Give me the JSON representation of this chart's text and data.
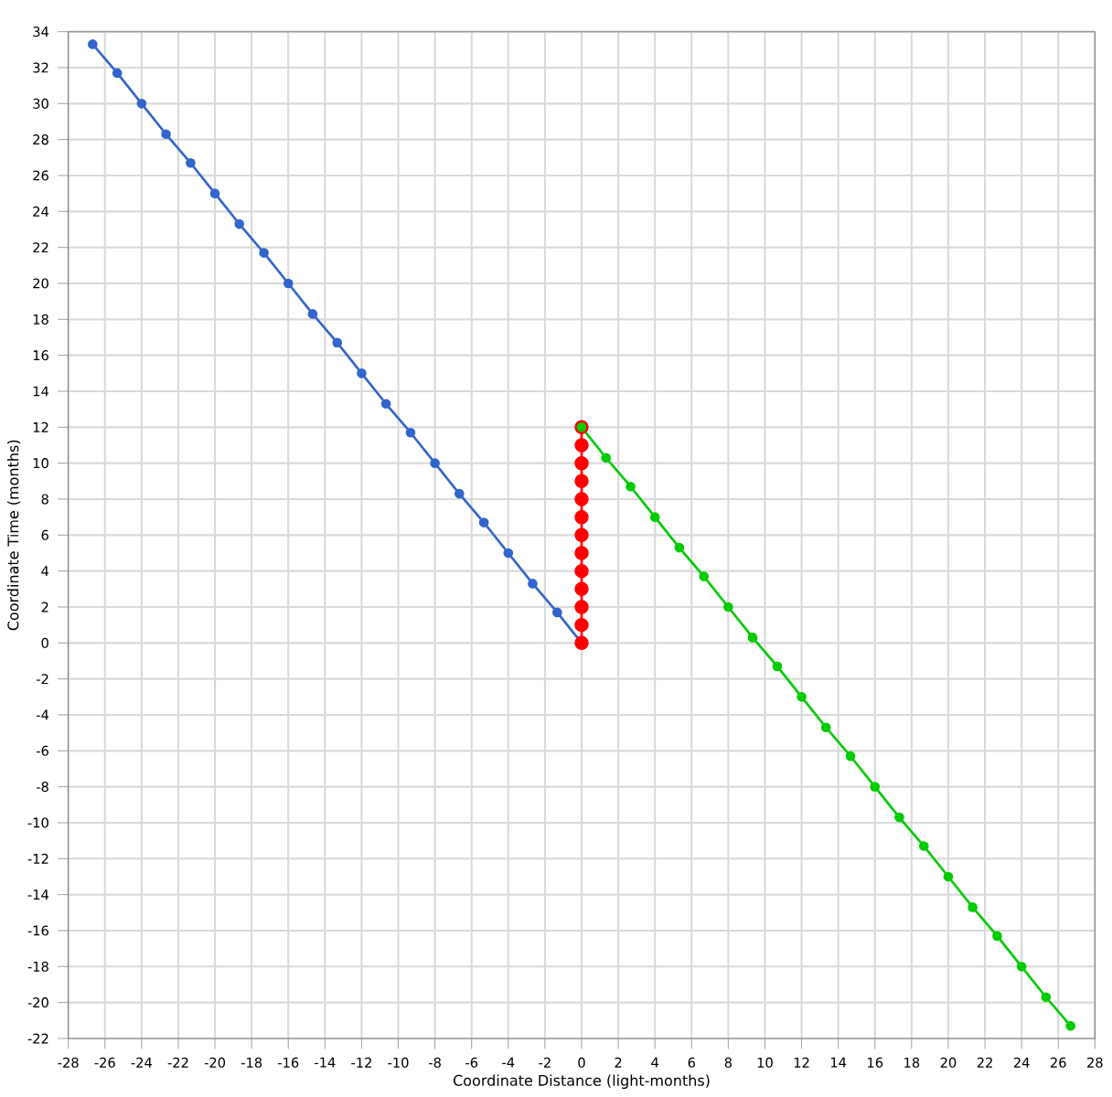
{
  "chart_data": {
    "type": "line",
    "xlabel": "Coordinate Distance (light-months)",
    "ylabel": "Coordinate Time (months)",
    "xlim": [
      -28,
      28
    ],
    "ylim": [
      -22,
      34
    ],
    "xticks": [
      -28,
      -26,
      -24,
      -22,
      -20,
      -18,
      -16,
      -14,
      -12,
      -10,
      -8,
      -6,
      -4,
      -2,
      0,
      2,
      4,
      6,
      8,
      10,
      12,
      14,
      16,
      18,
      20,
      22,
      24,
      26,
      28
    ],
    "yticks": [
      -22,
      -20,
      -18,
      -16,
      -14,
      -12,
      -10,
      -8,
      -6,
      -4,
      -2,
      0,
      2,
      4,
      6,
      8,
      10,
      12,
      14,
      16,
      18,
      20,
      22,
      24,
      26,
      28,
      30,
      32,
      34
    ],
    "grid": true,
    "marker": "circle",
    "line_style": "solid",
    "series": [
      {
        "color": "#3366cc",
        "x": [
          0,
          -1.33,
          -2.67,
          -4,
          -5.33,
          -6.67,
          -8,
          -9.33,
          -10.67,
          -12,
          -13.33,
          -14.67,
          -16,
          -17.33,
          -18.67,
          -20,
          -21.33,
          -22.67,
          -24,
          -25.33,
          -26.67
        ],
        "values": [
          0,
          1.7,
          3.3,
          5,
          6.7,
          8.3,
          10,
          11.7,
          13.3,
          15,
          16.7,
          18.3,
          20,
          21.7,
          23.3,
          25,
          26.7,
          28.3,
          30,
          31.7,
          33.3
        ]
      },
      {
        "color": "#ff0000",
        "x": [
          0,
          0,
          0,
          0,
          0,
          0,
          0,
          0,
          0,
          0,
          0,
          0,
          0
        ],
        "values": [
          0,
          1,
          2,
          3,
          4,
          5,
          6,
          7,
          8,
          9,
          10,
          11,
          12
        ]
      },
      {
        "color": "#00cc00",
        "x": [
          0,
          1.33,
          2.67,
          4,
          5.33,
          6.67,
          8,
          9.33,
          10.67,
          12,
          13.33,
          14.67,
          16,
          17.33,
          18.67,
          20,
          21.33,
          22.67,
          24,
          25.33,
          26.67
        ],
        "values": [
          12,
          10.3,
          8.7,
          7,
          5.3,
          3.7,
          2,
          0.3,
          -1.3,
          -3,
          -4.7,
          -6.3,
          -8,
          -9.7,
          -11.3,
          -13,
          -14.7,
          -16.3,
          -18,
          -19.7,
          -21.3
        ]
      }
    ]
  }
}
